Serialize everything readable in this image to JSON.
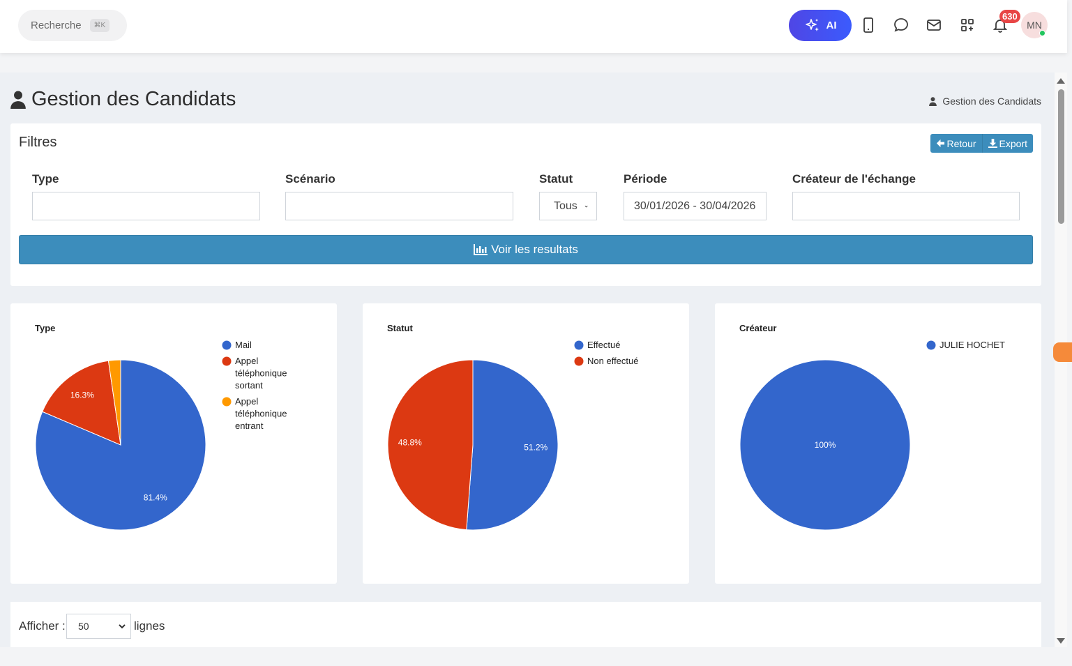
{
  "topbar": {
    "search_label": "Recherche",
    "search_shortcut": "⌘K",
    "ai_label": "AI",
    "notification_count": "630",
    "avatar_initials": "MN"
  },
  "page": {
    "title": "Gestion des Candidats",
    "breadcrumb": "Gestion des Candidats"
  },
  "filters": {
    "title": "Filtres",
    "back_label": "Retour",
    "export_label": "Export",
    "fields": {
      "type_label": "Type",
      "type_value": "",
      "scenario_label": "Scénario",
      "scenario_value": "",
      "statut_label": "Statut",
      "statut_value": "Tous",
      "periode_label": "Période",
      "periode_value": "30/01/2026 - 30/04/2026",
      "createur_label": "Créateur de l'échange",
      "createur_value": ""
    },
    "results_button": "Voir les resultats"
  },
  "chart_data": [
    {
      "type": "pie",
      "title": "Type",
      "categories": [
        "Mail",
        "Appel téléphonique sortant",
        "Appel téléphonique entrant"
      ],
      "values": [
        81.4,
        16.3,
        2.3
      ],
      "labels": [
        "81.4%",
        "16.3%",
        ""
      ],
      "legend": [
        [
          "Mail"
        ],
        [
          "Appel",
          "téléphonique",
          "sortant"
        ],
        [
          "Appel",
          "téléphonique",
          "entrant"
        ]
      ],
      "colors": [
        "#3366cc",
        "#dc3912",
        "#ff9900"
      ],
      "legend_position": "right"
    },
    {
      "type": "pie",
      "title": "Statut",
      "categories": [
        "Effectué",
        "Non effectué"
      ],
      "values": [
        51.2,
        48.8
      ],
      "labels": [
        "51.2%",
        "48.8%"
      ],
      "legend": [
        [
          "Effectué"
        ],
        [
          "Non effectué"
        ]
      ],
      "colors": [
        "#3366cc",
        "#dc3912"
      ],
      "legend_position": "right"
    },
    {
      "type": "pie",
      "title": "Créateur",
      "categories": [
        "JULIE HOCHET"
      ],
      "values": [
        100
      ],
      "labels": [
        "100%"
      ],
      "legend": [
        [
          "JULIE HOCHET"
        ]
      ],
      "colors": [
        "#3366cc"
      ],
      "legend_position": "right"
    }
  ],
  "table_controls": {
    "show_label": "Afficher :",
    "rows_value": "50",
    "lines_label": "lignes"
  }
}
